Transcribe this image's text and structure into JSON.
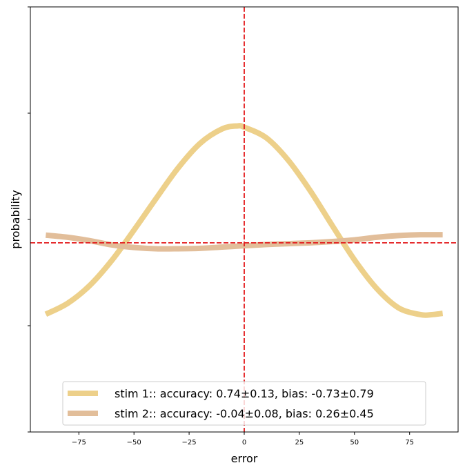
{
  "chart_data": {
    "type": "line",
    "xlabel": "error",
    "ylabel": "probability",
    "xlim": [
      -97,
      97
    ],
    "ylim": [
      0,
      1
    ],
    "xticks": [
      -75,
      -50,
      -25,
      0,
      25,
      50,
      75
    ],
    "xtick_labels": [
      "−75",
      "−50",
      "−25",
      "0",
      "25",
      "50",
      "75"
    ],
    "yticks": [
      0,
      0.25,
      0.5,
      0.75,
      1.0
    ],
    "grid": false,
    "legend_position": "lower-center",
    "reference_lines": {
      "vertical_x": 0,
      "horizontal_y": 0.445,
      "color": "#e31a1c",
      "style": "dashed"
    },
    "series": [
      {
        "name": "stim 1:: accuracy: 0.74±0.13, bias: -0.73±0.79",
        "color": "#edd08a",
        "x": [
          -90,
          -80,
          -70,
          -60,
          -50,
          -40,
          -30,
          -20,
          -10,
          -3,
          0,
          10,
          20,
          30,
          40,
          50,
          60,
          70,
          80,
          85,
          90
        ],
        "y": [
          0.277,
          0.303,
          0.345,
          0.404,
          0.475,
          0.549,
          0.621,
          0.679,
          0.713,
          0.72,
          0.717,
          0.692,
          0.639,
          0.567,
          0.485,
          0.405,
          0.338,
          0.292,
          0.276,
          0.276,
          0.279
        ]
      },
      {
        "name": "stim 2:: accuracy: -0.04±0.08, bias: 0.26±0.45",
        "color": "#e2be9a",
        "x": [
          -90,
          -80,
          -70,
          -60,
          -50,
          -40,
          -30,
          -20,
          -10,
          0,
          10,
          20,
          30,
          40,
          50,
          60,
          70,
          80,
          90
        ],
        "y": [
          0.463,
          0.458,
          0.45,
          0.44,
          0.434,
          0.431,
          0.431,
          0.432,
          0.435,
          0.438,
          0.441,
          0.443,
          0.445,
          0.448,
          0.452,
          0.458,
          0.462,
          0.464,
          0.464
        ]
      }
    ]
  }
}
